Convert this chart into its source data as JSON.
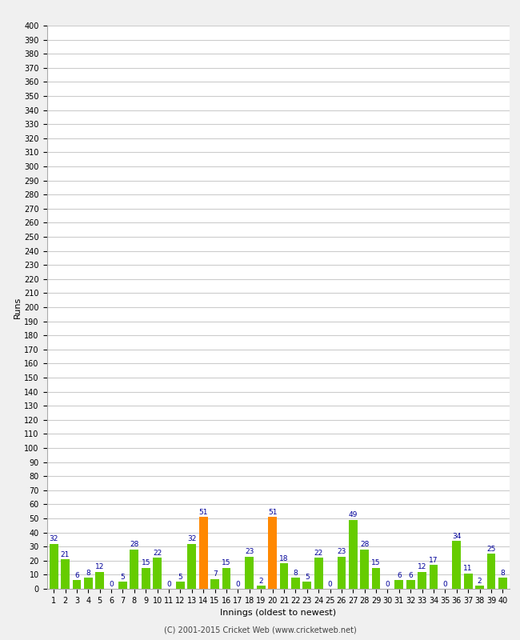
{
  "innings": [
    1,
    2,
    3,
    4,
    5,
    6,
    7,
    8,
    9,
    10,
    11,
    12,
    13,
    14,
    15,
    16,
    17,
    18,
    19,
    20,
    21,
    22,
    23,
    24,
    25,
    26,
    27,
    28,
    29,
    30,
    31,
    32,
    33,
    34,
    35,
    36,
    37,
    38,
    39,
    40
  ],
  "values": [
    32,
    21,
    6,
    8,
    12,
    0,
    5,
    28,
    15,
    22,
    0,
    5,
    32,
    51,
    7,
    15,
    0,
    23,
    2,
    51,
    18,
    8,
    5,
    22,
    0,
    23,
    49,
    28,
    15,
    0,
    6,
    6,
    12,
    17,
    0,
    34,
    11,
    2,
    25,
    8
  ],
  "colors": [
    "#66cc00",
    "#66cc00",
    "#66cc00",
    "#66cc00",
    "#66cc00",
    "#66cc00",
    "#66cc00",
    "#66cc00",
    "#66cc00",
    "#66cc00",
    "#66cc00",
    "#66cc00",
    "#66cc00",
    "#ff8800",
    "#66cc00",
    "#66cc00",
    "#66cc00",
    "#66cc00",
    "#66cc00",
    "#ff8800",
    "#66cc00",
    "#66cc00",
    "#66cc00",
    "#66cc00",
    "#66cc00",
    "#66cc00",
    "#66cc00",
    "#66cc00",
    "#66cc00",
    "#66cc00",
    "#66cc00",
    "#66cc00",
    "#66cc00",
    "#66cc00",
    "#66cc00",
    "#66cc00",
    "#66cc00",
    "#66cc00",
    "#66cc00",
    "#66cc00"
  ],
  "xlabel": "Innings (oldest to newest)",
  "ylabel": "Runs",
  "ylim": [
    0,
    400
  ],
  "yticks": [
    0,
    10,
    20,
    30,
    40,
    50,
    60,
    70,
    80,
    90,
    100,
    110,
    120,
    130,
    140,
    150,
    160,
    170,
    180,
    190,
    200,
    210,
    220,
    230,
    240,
    250,
    260,
    270,
    280,
    290,
    300,
    310,
    320,
    330,
    340,
    350,
    360,
    370,
    380,
    390,
    400
  ],
  "bg_color": "#f0f0f0",
  "plot_bg_color": "#ffffff",
  "grid_color": "#cccccc",
  "footer": "(C) 2001-2015 Cricket Web (www.cricketweb.net)",
  "label_color": "#000099",
  "label_fontsize": 6.5,
  "tick_fontsize": 7,
  "xlabel_fontsize": 8,
  "ylabel_fontsize": 8
}
